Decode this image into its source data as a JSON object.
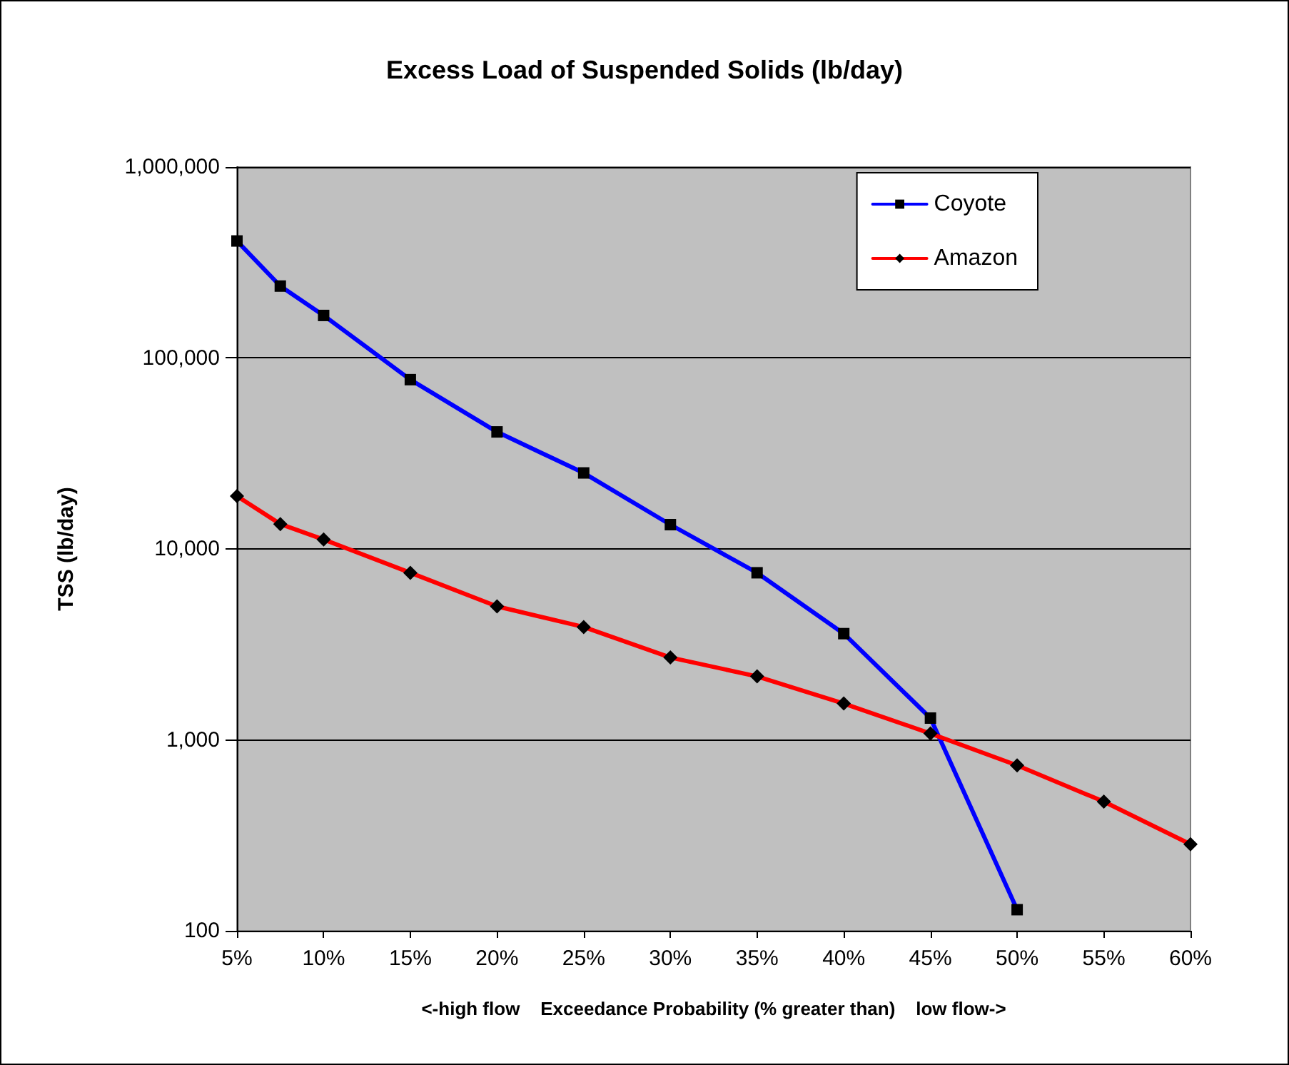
{
  "chart_data": {
    "type": "line",
    "title": "Excess Load of Suspended Solids (lb/day)",
    "xlabel": "<-high flow    Exceedance Probability (% greater than)    low flow->",
    "ylabel": "TSS (lb/day)",
    "x": [
      5,
      7.5,
      10,
      15,
      20,
      25,
      30,
      35,
      40,
      45,
      50,
      55,
      60
    ],
    "series": [
      {
        "name": "Coyote",
        "color": "#0000ff",
        "marker": "square",
        "values": [
          410000,
          238000,
          167000,
          77000,
          41000,
          25000,
          13400,
          7500,
          3600,
          1300,
          129,
          null,
          null
        ]
      },
      {
        "name": "Amazon",
        "color": "#ff0000",
        "marker": "diamond",
        "values": [
          18900,
          13500,
          11200,
          7500,
          5000,
          3900,
          2700,
          2150,
          1550,
          1080,
          735,
          475,
          284
        ]
      }
    ],
    "xlim": [
      5,
      60
    ],
    "xticks": [
      {
        "value": 5,
        "label": "5%"
      },
      {
        "value": 10,
        "label": "10%"
      },
      {
        "value": 15,
        "label": "15%"
      },
      {
        "value": 20,
        "label": "20%"
      },
      {
        "value": 25,
        "label": "25%"
      },
      {
        "value": 30,
        "label": "30%"
      },
      {
        "value": 35,
        "label": "35%"
      },
      {
        "value": 40,
        "label": "40%"
      },
      {
        "value": 45,
        "label": "45%"
      },
      {
        "value": 50,
        "label": "50%"
      },
      {
        "value": 55,
        "label": "55%"
      },
      {
        "value": 60,
        "label": "60%"
      }
    ],
    "ylim": [
      100,
      1000000
    ],
    "yticks": [
      {
        "value": 100,
        "label": "100"
      },
      {
        "value": 1000,
        "label": "1,000"
      },
      {
        "value": 10000,
        "label": "10,000"
      },
      {
        "value": 100000,
        "label": "100,000"
      },
      {
        "value": 1000000,
        "label": "1,000,000"
      }
    ],
    "log": "y",
    "grid": "y",
    "legend": "top right",
    "line_style": "solid"
  }
}
